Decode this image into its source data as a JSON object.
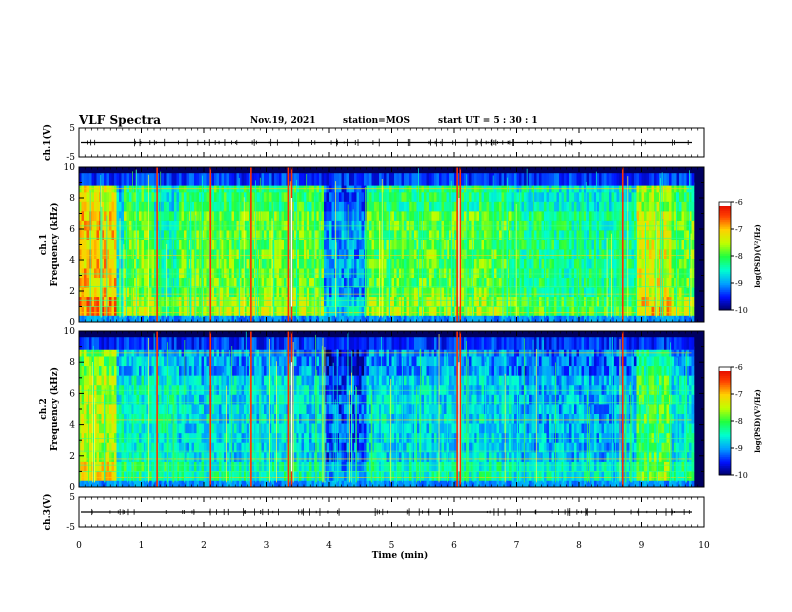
{
  "header": {
    "title": "VLF Spectra",
    "date": "Nov.19, 2021",
    "station": "station=MOS",
    "start_ut": "start  UT =  5 : 30 : 1"
  },
  "chart_data": [
    {
      "type": "line",
      "name": "ch1-waveform",
      "ylabel": "ch.1(V)",
      "ylim": [
        -5,
        5
      ],
      "yticks": [
        "5",
        "-5"
      ],
      "x": [
        0,
        10
      ],
      "values": [
        0,
        0
      ]
    },
    {
      "type": "heatmap",
      "name": "ch1-spectrogram",
      "ylabel": [
        "ch.1",
        "Frequency  (kHz)"
      ],
      "xlim": [
        0,
        10
      ],
      "ylim": [
        0,
        10
      ],
      "yticks": [
        "0",
        "2",
        "4",
        "6",
        "8",
        "10"
      ],
      "colorbar": {
        "label": "log(PSD)(V²/Hz)",
        "ticks": [
          "-6",
          "-7",
          "-8",
          "-9",
          "-10"
        ],
        "range": [
          -10,
          -6
        ]
      },
      "bright_segments": [
        {
          "x": [
            0.0,
            0.6
          ],
          "level": -7.0
        },
        {
          "x": [
            0.6,
            0.7
          ],
          "level": -8.6
        },
        {
          "x": [
            0.7,
            1.2
          ],
          "level": -7.8
        },
        {
          "x": [
            1.2,
            1.6
          ],
          "level": -8.3
        },
        {
          "x": [
            1.6,
            3.9
          ],
          "level": -7.8
        },
        {
          "x": [
            3.9,
            4.6
          ],
          "level": -9.0
        },
        {
          "x": [
            4.6,
            6.9
          ],
          "level": -7.9
        },
        {
          "x": [
            6.9,
            7.6
          ],
          "level": -8.2
        },
        {
          "x": [
            7.6,
            8.9
          ],
          "level": -8.3
        },
        {
          "x": [
            8.9,
            9.45
          ],
          "level": -7.3
        },
        {
          "x": [
            9.45,
            9.8
          ],
          "level": -7.8
        }
      ],
      "bursts_min": [
        1.25,
        2.1,
        2.75,
        3.35,
        3.4,
        6.05,
        6.1,
        8.7
      ]
    },
    {
      "type": "heatmap",
      "name": "ch2-spectrogram",
      "ylabel": [
        "ch.2",
        "Frequency  (kHz)"
      ],
      "xlim": [
        0,
        10
      ],
      "ylim": [
        0,
        10
      ],
      "yticks": [
        "0",
        "2",
        "4",
        "6",
        "8",
        "10"
      ],
      "colorbar": {
        "label": "log(PSD)(V²/Hz)",
        "ticks": [
          "-6",
          "-7",
          "-8",
          "-9",
          "-10"
        ],
        "range": [
          -10,
          -6
        ]
      },
      "bright_segments": [
        {
          "x": [
            0.0,
            0.6
          ],
          "level": -7.5
        },
        {
          "x": [
            0.6,
            1.6
          ],
          "level": -8.5
        },
        {
          "x": [
            1.6,
            3.9
          ],
          "level": -8.7
        },
        {
          "x": [
            3.9,
            4.6
          ],
          "level": -9.3
        },
        {
          "x": [
            4.6,
            6.9
          ],
          "level": -8.7
        },
        {
          "x": [
            6.9,
            8.9
          ],
          "level": -8.9
        },
        {
          "x": [
            8.9,
            9.45
          ],
          "level": -8.0
        },
        {
          "x": [
            9.45,
            9.8
          ],
          "level": -8.6
        }
      ],
      "bursts_min": [
        1.25,
        2.1,
        2.75,
        3.35,
        3.4,
        6.05,
        6.1,
        8.7
      ]
    },
    {
      "type": "line",
      "name": "ch3-waveform",
      "ylabel": "ch.3(V)",
      "ylim": [
        -5,
        5
      ],
      "yticks": [
        "5",
        "-5"
      ],
      "x": [
        0,
        10
      ],
      "values": [
        0,
        0
      ]
    }
  ],
  "xaxis": {
    "label": "Time  (min)",
    "ticks": [
      "0",
      "1",
      "2",
      "3",
      "4",
      "5",
      "6",
      "7",
      "8",
      "9",
      "10"
    ]
  },
  "colors": {
    "background": "#000060",
    "colormap": [
      "#000060",
      "#0010ff",
      "#00a0ff",
      "#00ffd0",
      "#20ff40",
      "#c0ff00",
      "#ffd000",
      "#ff4000",
      "#e00000",
      "#ffffff"
    ]
  }
}
